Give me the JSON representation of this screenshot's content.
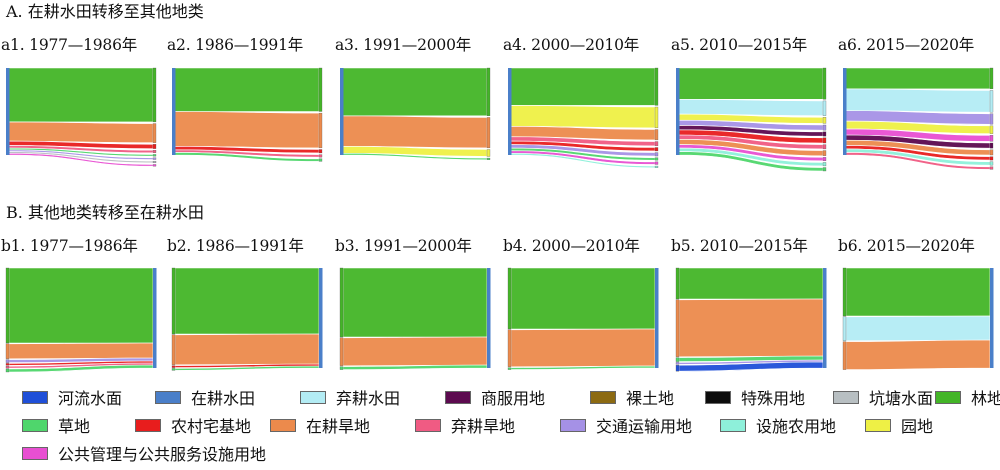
{
  "sections": [
    {
      "id": "A",
      "title": "A. 在耕水田转移至其他地类"
    },
    {
      "id": "B",
      "title": "B. 其他地类转移至在耕水田"
    }
  ],
  "legend": [
    {
      "name": "河流水面",
      "color": "#1f4fd8"
    },
    {
      "name": "在耕水田",
      "color": "#4a7fc9"
    },
    {
      "name": "弃耕水田",
      "color": "#b3ecf4"
    },
    {
      "name": "商服用地",
      "color": "#5c0a4f"
    },
    {
      "name": "裸土地",
      "color": "#8c6a12"
    },
    {
      "name": "特殊用地",
      "color": "#0c0c0c"
    },
    {
      "name": "坑塘水面",
      "color": "#b8bfc2"
    },
    {
      "name": "林地",
      "color": "#43b527"
    },
    {
      "name": "草地",
      "color": "#4fd66c"
    },
    {
      "name": "农村宅基地",
      "color": "#e81d1d"
    },
    {
      "name": "在耕旱地",
      "color": "#ec8a4c"
    },
    {
      "name": "弃耕旱地",
      "color": "#f05b83"
    },
    {
      "name": "交通运输用地",
      "color": "#a591e6"
    },
    {
      "name": "设施农用地",
      "color": "#8ef0da"
    },
    {
      "name": "园地",
      "color": "#eef045"
    },
    {
      "name": "公共管理与公共服务设施用地",
      "color": "#e84fd2"
    }
  ],
  "chart_data": [
    {
      "type": "sankey",
      "panel": "a1",
      "title": "a1. 1977—1986年",
      "direction": "在耕水田→其他地类",
      "flows": [
        {
          "class": "林地",
          "share": 0.62
        },
        {
          "class": "在耕旱地",
          "share": 0.22
        },
        {
          "class": "农村宅基地",
          "share": 0.05
        },
        {
          "class": "弃耕旱地",
          "share": 0.03
        },
        {
          "class": "草地",
          "share": 0.02
        },
        {
          "class": "交通运输用地",
          "share": 0.02
        },
        {
          "class": "坑塘水面",
          "share": 0.02
        },
        {
          "class": "公共管理与公共服务设施用地",
          "share": 0.02
        }
      ]
    },
    {
      "type": "sankey",
      "panel": "a2",
      "title": "a2. 1986—1991年",
      "direction": "在耕水田→其他地类",
      "flows": [
        {
          "class": "林地",
          "share": 0.5
        },
        {
          "class": "在耕旱地",
          "share": 0.4
        },
        {
          "class": "农村宅基地",
          "share": 0.04
        },
        {
          "class": "弃耕旱地",
          "share": 0.03
        },
        {
          "class": "草地",
          "share": 0.03
        }
      ]
    },
    {
      "type": "sankey",
      "panel": "a3",
      "title": "a3. 1991—2000年",
      "direction": "在耕水田→其他地类",
      "flows": [
        {
          "class": "林地",
          "share": 0.55
        },
        {
          "class": "在耕旱地",
          "share": 0.35
        },
        {
          "class": "园地",
          "share": 0.08
        },
        {
          "class": "草地",
          "share": 0.02
        }
      ]
    },
    {
      "type": "sankey",
      "panel": "a4",
      "title": "a4. 2000—2010年",
      "direction": "在耕水田→其他地类",
      "flows": [
        {
          "class": "林地",
          "share": 0.43
        },
        {
          "class": "园地",
          "share": 0.24
        },
        {
          "class": "在耕旱地",
          "share": 0.12
        },
        {
          "class": "弃耕旱地",
          "share": 0.05
        },
        {
          "class": "农村宅基地",
          "share": 0.04
        },
        {
          "class": "交通运输用地",
          "share": 0.04
        },
        {
          "class": "草地",
          "share": 0.03
        },
        {
          "class": "公共管理与公共服务设施用地",
          "share": 0.03
        },
        {
          "class": "设施农用地",
          "share": 0.02
        }
      ]
    },
    {
      "type": "sankey",
      "panel": "a5",
      "title": "a5. 2010—2015年",
      "direction": "在耕水田→其他地类",
      "flows": [
        {
          "class": "林地",
          "share": 0.36
        },
        {
          "class": "弃耕水田",
          "share": 0.17
        },
        {
          "class": "园地",
          "share": 0.07
        },
        {
          "class": "交通运输用地",
          "share": 0.06
        },
        {
          "class": "商服用地",
          "share": 0.05
        },
        {
          "class": "农村宅基地",
          "share": 0.06
        },
        {
          "class": "弃耕旱地",
          "share": 0.05
        },
        {
          "class": "在耕旱地",
          "share": 0.06
        },
        {
          "class": "公共管理与公共服务设施用地",
          "share": 0.04
        },
        {
          "class": "设施农用地",
          "share": 0.04
        },
        {
          "class": "草地",
          "share": 0.04
        }
      ]
    },
    {
      "type": "sankey",
      "panel": "a6",
      "title": "a6. 2015—2020年",
      "direction": "在耕水田→其他地类",
      "flows": [
        {
          "class": "林地",
          "share": 0.24
        },
        {
          "class": "弃耕水田",
          "share": 0.25
        },
        {
          "class": "交通运输用地",
          "share": 0.12
        },
        {
          "class": "园地",
          "share": 0.09
        },
        {
          "class": "公共管理与公共服务设施用地",
          "share": 0.07
        },
        {
          "class": "商服用地",
          "share": 0.06
        },
        {
          "class": "在耕旱地",
          "share": 0.06
        },
        {
          "class": "农村宅基地",
          "share": 0.04
        },
        {
          "class": "设施农用地",
          "share": 0.04
        },
        {
          "class": "弃耕旱地",
          "share": 0.03
        }
      ]
    },
    {
      "type": "sankey",
      "panel": "b1",
      "title": "b1. 1977—1986年",
      "direction": "其他地类→在耕水田",
      "flows": [
        {
          "class": "林地",
          "share": 0.75
        },
        {
          "class": "在耕旱地",
          "share": 0.15
        },
        {
          "class": "交通运输用地",
          "share": 0.03
        },
        {
          "class": "农村宅基地",
          "share": 0.02
        },
        {
          "class": "弃耕旱地",
          "share": 0.02
        },
        {
          "class": "草地",
          "share": 0.03
        }
      ]
    },
    {
      "type": "sankey",
      "panel": "b2",
      "title": "b2. 1986—1991年",
      "direction": "其他地类→在耕水田",
      "flows": [
        {
          "class": "林地",
          "share": 0.66
        },
        {
          "class": "在耕旱地",
          "share": 0.3
        },
        {
          "class": "农村宅基地",
          "share": 0.02
        },
        {
          "class": "草地",
          "share": 0.02
        }
      ]
    },
    {
      "type": "sankey",
      "panel": "b3",
      "title": "b3. 1991—2000年",
      "direction": "其他地类→在耕水田",
      "flows": [
        {
          "class": "林地",
          "share": 0.69
        },
        {
          "class": "在耕旱地",
          "share": 0.28
        },
        {
          "class": "草地",
          "share": 0.03
        }
      ]
    },
    {
      "type": "sankey",
      "panel": "b4",
      "title": "b4. 2000—2010年",
      "direction": "其他地类→在耕水田",
      "flows": [
        {
          "class": "林地",
          "share": 0.61
        },
        {
          "class": "在耕旱地",
          "share": 0.37
        },
        {
          "class": "草地",
          "share": 0.02
        }
      ]
    },
    {
      "type": "sankey",
      "panel": "b5",
      "title": "b5. 2010—2015年",
      "direction": "其他地类→在耕水田",
      "flows": [
        {
          "class": "林地",
          "share": 0.31
        },
        {
          "class": "在耕旱地",
          "share": 0.57
        },
        {
          "class": "草地",
          "share": 0.04
        },
        {
          "class": "交通运输用地",
          "share": 0.02
        },
        {
          "class": "河流水面",
          "share": 0.06
        }
      ]
    },
    {
      "type": "sankey",
      "panel": "b6",
      "title": "b6. 2015—2020年",
      "direction": "其他地类→在耕水田",
      "flows": [
        {
          "class": "林地",
          "share": 0.48
        },
        {
          "class": "弃耕水田",
          "share": 0.24
        },
        {
          "class": "在耕旱地",
          "share": 0.28
        }
      ]
    }
  ]
}
